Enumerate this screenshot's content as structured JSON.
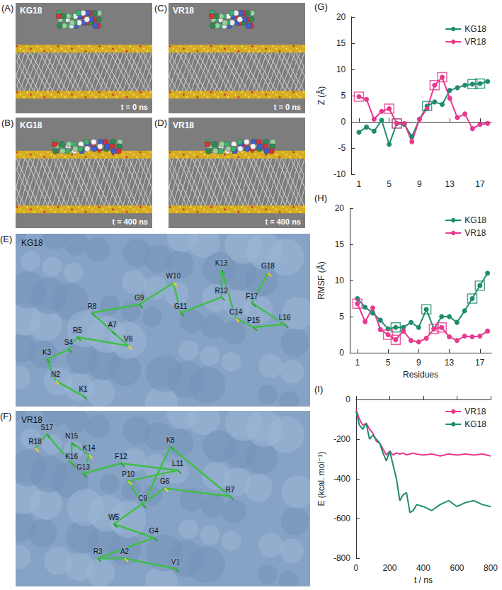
{
  "snapshots": [
    {
      "letter": "(A)",
      "peptide": "KG18",
      "time": "t = 0 ns"
    },
    {
      "letter": "(B)",
      "peptide": "KG18",
      "time": "t = 400 ns"
    },
    {
      "letter": "(C)",
      "peptide": "VR18",
      "time": "t = 0 ns"
    },
    {
      "letter": "(D)",
      "peptide": "VR18",
      "time": "t = 400 ns"
    }
  ],
  "contacts": [
    {
      "letter": "(E)",
      "peptide": "KG18",
      "residues": [
        "K1",
        "N2",
        "K3",
        "S4",
        "R5",
        "V6",
        "A7",
        "R8",
        "G9",
        "W10",
        "G11",
        "R12",
        "K13",
        "C14",
        "P15",
        "L16",
        "F17",
        "G18"
      ]
    },
    {
      "letter": "(F)",
      "peptide": "VR18",
      "residues": [
        "V1",
        "A2",
        "R3",
        "G4",
        "W5",
        "G6",
        "R7",
        "K8",
        "C9",
        "P10",
        "L11",
        "F12",
        "G13",
        "K14",
        "N15",
        "K16",
        "S17",
        "R18"
      ]
    }
  ],
  "chart_data": [
    {
      "letter": "(G)",
      "type": "line",
      "ylabel": "Z (Å)",
      "x": [
        1,
        2,
        3,
        4,
        5,
        6,
        7,
        8,
        9,
        10,
        11,
        12,
        13,
        14,
        15,
        16,
        17,
        18
      ],
      "xlim": [
        0,
        18.5
      ],
      "xticks": [
        1,
        5,
        9,
        13,
        17
      ],
      "ylim": [
        -10,
        20
      ],
      "yticks": [
        -10,
        -5,
        0,
        5,
        10,
        15,
        20
      ],
      "legend": "upper right",
      "series": [
        {
          "name": "KG18",
          "color": "#1e8c6e",
          "marker": "circle",
          "values": [
            -2,
            -1,
            -1.8,
            0.3,
            -4.3,
            -0.3,
            -0.5,
            -2.8,
            0.5,
            3,
            3.8,
            3.3,
            6,
            6.5,
            7,
            7.2,
            7.3,
            7.7
          ],
          "highlighted": [
            6,
            10,
            16,
            17
          ]
        },
        {
          "name": "VR18",
          "color": "#e8388f",
          "marker": "circle",
          "values": [
            4.8,
            4.3,
            0.5,
            2,
            2.5,
            -0.3,
            -0.3,
            -3.8,
            0.5,
            2.5,
            7,
            8.5,
            4.5,
            0.8,
            1.5,
            -1.3,
            -0.5,
            -0.3
          ],
          "highlighted": [
            1,
            5,
            6,
            11,
            12
          ]
        }
      ]
    },
    {
      "letter": "(H)",
      "type": "line",
      "ylabel": "RMSF (Å)",
      "xlabel": "Residues",
      "x": [
        1,
        2,
        3,
        4,
        5,
        6,
        7,
        8,
        9,
        10,
        11,
        12,
        13,
        14,
        15,
        16,
        17,
        18
      ],
      "xlim": [
        0,
        18.5
      ],
      "xticks": [
        1,
        5,
        9,
        13,
        17
      ],
      "ylim": [
        0,
        20
      ],
      "yticks": [
        0,
        5,
        10,
        15,
        20
      ],
      "legend": "upper right",
      "series": [
        {
          "name": "KG18",
          "color": "#1e8c6e",
          "marker": "circle",
          "values": [
            7.5,
            6.3,
            5.5,
            4.5,
            3.3,
            3.5,
            3.5,
            4.2,
            3.5,
            6,
            3.3,
            5,
            5,
            4.2,
            5.8,
            7.5,
            9.3,
            11
          ],
          "highlighted": [
            6,
            10,
            16,
            17
          ]
        },
        {
          "name": "VR18",
          "color": "#e8388f",
          "marker": "circle",
          "values": [
            6.8,
            4.3,
            6.2,
            3.2,
            2.5,
            1.8,
            3,
            1.7,
            1.5,
            2,
            3.3,
            3.5,
            2.2,
            1.7,
            2.3,
            2.2,
            2.3,
            3
          ],
          "highlighted": [
            1,
            5,
            6,
            11,
            12
          ]
        }
      ]
    },
    {
      "letter": "(I)",
      "type": "line",
      "ylabel": "E (kcal. mol⁻¹)",
      "xlabel": "t / ns",
      "x": [
        0,
        20,
        40,
        60,
        80,
        100,
        120,
        140,
        160,
        180,
        200,
        220,
        240,
        260,
        280,
        300,
        320,
        340,
        360,
        400,
        450,
        500,
        550,
        600,
        650,
        700,
        750,
        800
      ],
      "xlim": [
        0,
        800
      ],
      "xticks": [
        0,
        200,
        400,
        600,
        800
      ],
      "ylim": [
        -800,
        0
      ],
      "yticks": [
        -800,
        -600,
        -400,
        -200,
        0
      ],
      "legend": "upper right",
      "series": [
        {
          "name": "VR18",
          "color": "#e8388f",
          "marker": "none",
          "values": [
            -50,
            -100,
            -130,
            -120,
            -150,
            -170,
            -210,
            -220,
            -250,
            -280,
            -260,
            -280,
            -270,
            -275,
            -270,
            -280,
            -275,
            -270,
            -275,
            -280,
            -275,
            -285,
            -275,
            -280,
            -275,
            -280,
            -275,
            -285
          ]
        },
        {
          "name": "KG18",
          "color": "#1e8c6e",
          "marker": "none",
          "values": [
            -60,
            -130,
            -150,
            -120,
            -200,
            -180,
            -200,
            -220,
            -270,
            -310,
            -260,
            -330,
            -400,
            -510,
            -480,
            -470,
            -570,
            -560,
            -530,
            -540,
            -560,
            -530,
            -510,
            -540,
            -520,
            -510,
            -530,
            -540
          ]
        }
      ]
    }
  ]
}
